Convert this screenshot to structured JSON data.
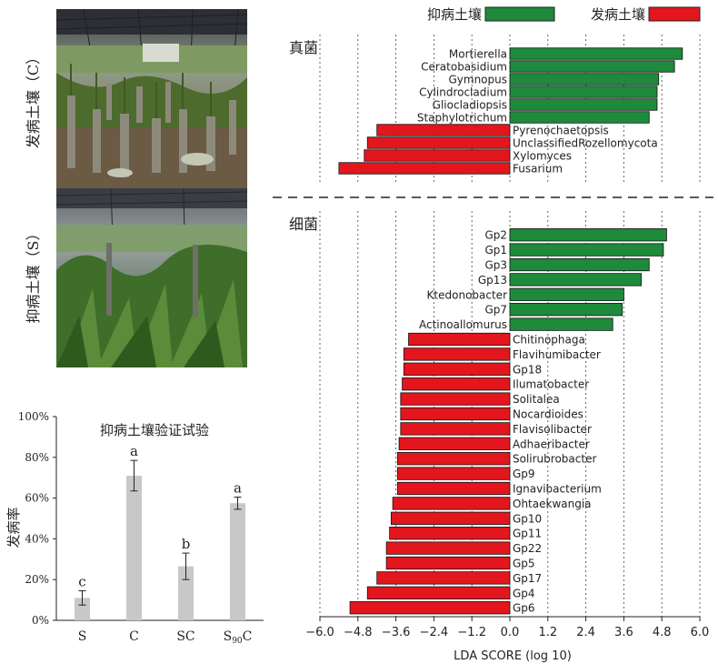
{
  "photos": {
    "top_label": "发病土壤（C）",
    "bottom_label": "抑病土壤（S）"
  },
  "legend": {
    "suppressive": "抑病土壤",
    "conducive": "发病土壤"
  },
  "colors": {
    "suppressive": "#1e8a3c",
    "conducive": "#e3161d",
    "bar_gray": "#c8c8c8"
  },
  "chart_data": [
    {
      "type": "bar",
      "title": "抑病土壤验证试验",
      "xlabel": "",
      "ylabel": "发病率",
      "ylim": [
        0,
        100
      ],
      "yticks": [
        "0%",
        "20%",
        "40%",
        "60%",
        "80%",
        "100%"
      ],
      "categories": [
        "S",
        "C",
        "SC",
        "S90C"
      ],
      "values": [
        11,
        71,
        26.5,
        57.5
      ],
      "errors": [
        3.5,
        7.5,
        6.5,
        3.0
      ],
      "significance": [
        "c",
        "a",
        "b",
        "a"
      ]
    },
    {
      "type": "bar",
      "orientation": "horizontal",
      "xlabel": "LDA SCORE (log 10)",
      "xlim": [
        -6.0,
        6.0
      ],
      "xticks": [
        "−6.0",
        "−4.8",
        "−3.6",
        "−2.4",
        "−1.2",
        "0.0",
        "1.2",
        "2.4",
        "3.6",
        "4.8",
        "6.0"
      ],
      "groups": [
        {
          "name": "真菌",
          "bars": [
            {
              "label": "Mortierella",
              "value": 5.45,
              "group": "suppressive"
            },
            {
              "label": "Ceratobasidium",
              "value": 5.2,
              "group": "suppressive"
            },
            {
              "label": "Gymnopus",
              "value": 4.7,
              "group": "suppressive"
            },
            {
              "label": "Cylindrocladium",
              "value": 4.65,
              "group": "suppressive"
            },
            {
              "label": "Gliocladiopsis",
              "value": 4.65,
              "group": "suppressive"
            },
            {
              "label": "Staphylotrichum",
              "value": 4.4,
              "group": "suppressive"
            },
            {
              "label": "Pyrenochaetopsis",
              "value": -4.2,
              "group": "conducive"
            },
            {
              "label": "UnclassifiedRozellomycota",
              "value": -4.5,
              "group": "conducive"
            },
            {
              "label": "Xylomyces",
              "value": -4.6,
              "group": "conducive"
            },
            {
              "label": "Fusarium",
              "value": -5.4,
              "group": "conducive"
            }
          ]
        },
        {
          "name": "细菌",
          "bars": [
            {
              "label": "Gp2",
              "value": 4.95,
              "group": "suppressive"
            },
            {
              "label": "Gp1",
              "value": 4.85,
              "group": "suppressive"
            },
            {
              "label": "Gp3",
              "value": 4.4,
              "group": "suppressive"
            },
            {
              "label": "Gp13",
              "value": 4.15,
              "group": "suppressive"
            },
            {
              "label": "Ktedonobacter",
              "value": 3.6,
              "group": "suppressive"
            },
            {
              "label": "Gp7",
              "value": 3.55,
              "group": "suppressive"
            },
            {
              "label": "Actinoallomurus",
              "value": 3.25,
              "group": "suppressive"
            },
            {
              "label": "Chitinophaga",
              "value": -3.2,
              "group": "conducive"
            },
            {
              "label": "Flavihumibacter",
              "value": -3.35,
              "group": "conducive"
            },
            {
              "label": "Gp18",
              "value": -3.35,
              "group": "conducive"
            },
            {
              "label": "Ilumatobacter",
              "value": -3.4,
              "group": "conducive"
            },
            {
              "label": "Solitalea",
              "value": -3.45,
              "group": "conducive"
            },
            {
              "label": "Nocardioides",
              "value": -3.45,
              "group": "conducive"
            },
            {
              "label": "Flavisolibacter",
              "value": -3.45,
              "group": "conducive"
            },
            {
              "label": "Adhaeribacter",
              "value": -3.5,
              "group": "conducive"
            },
            {
              "label": "Solirubrobacter",
              "value": -3.55,
              "group": "conducive"
            },
            {
              "label": "Gp9",
              "value": -3.55,
              "group": "conducive"
            },
            {
              "label": "Ignavibacterium",
              "value": -3.55,
              "group": "conducive"
            },
            {
              "label": "Ohtaekwangia",
              "value": -3.7,
              "group": "conducive"
            },
            {
              "label": "Gp10",
              "value": -3.75,
              "group": "conducive"
            },
            {
              "label": "Gp11",
              "value": -3.8,
              "group": "conducive"
            },
            {
              "label": "Gp22",
              "value": -3.9,
              "group": "conducive"
            },
            {
              "label": "Gp5",
              "value": -3.9,
              "group": "conducive"
            },
            {
              "label": "Gp17",
              "value": -4.2,
              "group": "conducive"
            },
            {
              "label": "Gp4",
              "value": -4.5,
              "group": "conducive"
            },
            {
              "label": "Gp6",
              "value": -5.05,
              "group": "conducive"
            }
          ]
        }
      ]
    }
  ]
}
